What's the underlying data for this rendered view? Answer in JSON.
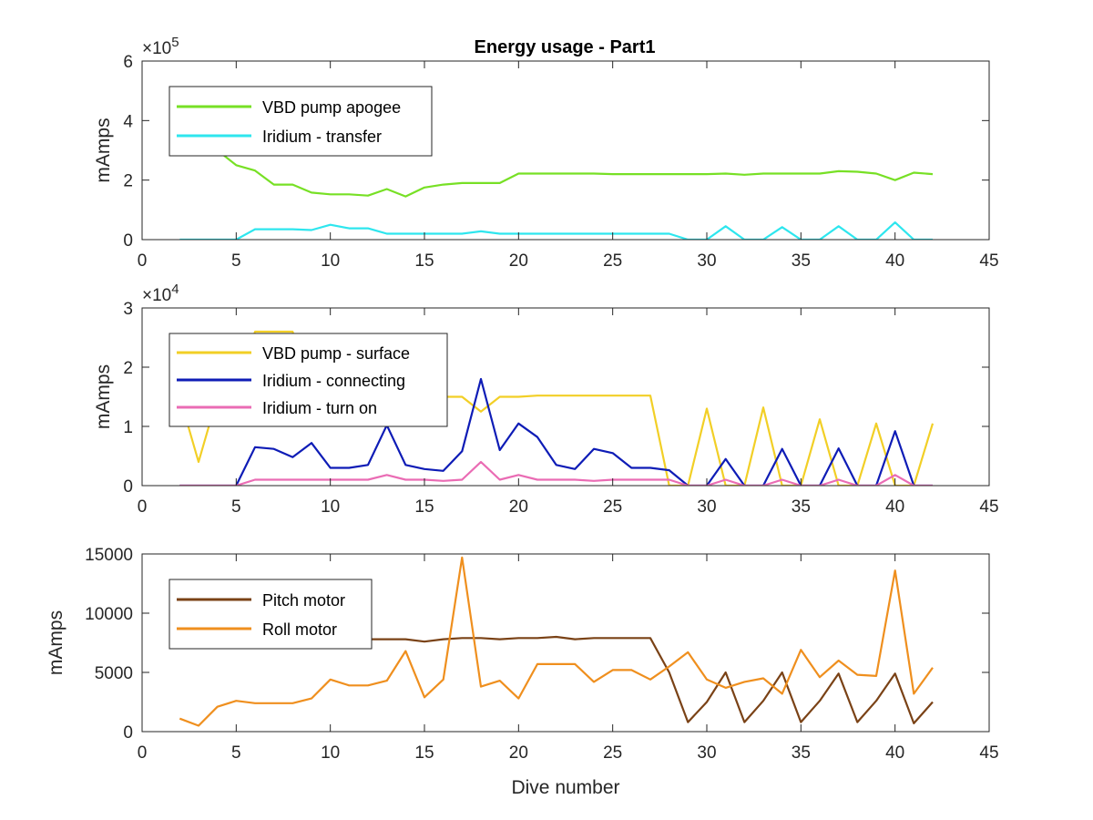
{
  "title": "Energy usage - Part1",
  "chart_data": [
    {
      "type": "line",
      "ylabel": "mAmps",
      "xlabel": "",
      "xlim": [
        0,
        45
      ],
      "ylim": [
        0,
        600000
      ],
      "xticks": [
        "0",
        "5",
        "10",
        "15",
        "20",
        "25",
        "30",
        "35",
        "40",
        "45"
      ],
      "yticks": [
        "0",
        "2",
        "4",
        "6"
      ],
      "ytick_values": [
        0,
        200000,
        400000,
        600000
      ],
      "y_exponent": {
        "base": "×10",
        "power": "5"
      },
      "legend_position": "top-left",
      "series": [
        {
          "name": "VBD pump apogee",
          "color": "#77e025",
          "x": [
            2,
            3,
            4,
            5,
            6,
            7,
            8,
            9,
            10,
            11,
            12,
            13,
            14,
            15,
            16,
            17,
            18,
            19,
            20,
            21,
            22,
            23,
            24,
            25,
            26,
            27,
            28,
            29,
            30,
            31,
            32,
            33,
            34,
            35,
            36,
            37,
            38,
            39,
            40,
            41,
            42
          ],
          "y": [
            480000,
            380000,
            300000,
            250000,
            232000,
            185000,
            185000,
            158000,
            152000,
            152000,
            148000,
            170000,
            145000,
            175000,
            185000,
            190000,
            190000,
            190000,
            222000,
            222000,
            222000,
            222000,
            222000,
            220000,
            220000,
            220000,
            220000,
            220000,
            220000,
            222000,
            218000,
            222000,
            222000,
            222000,
            222000,
            230000,
            228000,
            222000,
            200000,
            225000,
            220000
          ]
        },
        {
          "name": "Iridium - transfer",
          "color": "#2ee6ee",
          "x": [
            2,
            3,
            4,
            5,
            6,
            7,
            8,
            9,
            10,
            11,
            12,
            13,
            14,
            15,
            16,
            17,
            18,
            19,
            20,
            21,
            22,
            23,
            24,
            25,
            26,
            27,
            28,
            29,
            30,
            31,
            32,
            33,
            34,
            35,
            36,
            37,
            38,
            39,
            40,
            41,
            42
          ],
          "y": [
            0,
            0,
            0,
            0,
            35000,
            35000,
            35000,
            32000,
            50000,
            38000,
            38000,
            20000,
            20000,
            20000,
            20000,
            20000,
            28000,
            20000,
            20000,
            20000,
            20000,
            20000,
            20000,
            20000,
            20000,
            20000,
            20000,
            0,
            0,
            45000,
            0,
            0,
            42000,
            0,
            0,
            45000,
            0,
            0,
            58000,
            0,
            0
          ]
        }
      ]
    },
    {
      "type": "line",
      "ylabel": "mAmps",
      "xlabel": "",
      "xlim": [
        0,
        45
      ],
      "ylim": [
        0,
        30000
      ],
      "xticks": [
        "0",
        "5",
        "10",
        "15",
        "20",
        "25",
        "30",
        "35",
        "40",
        "45"
      ],
      "yticks": [
        "0",
        "1",
        "2",
        "3"
      ],
      "ytick_values": [
        0,
        10000,
        20000,
        30000
      ],
      "y_exponent": {
        "base": "×10",
        "power": "4"
      },
      "legend_position": "top-left",
      "series": [
        {
          "name": "VBD pump - surface",
          "color": "#f2cf26",
          "x": [
            2,
            3,
            4,
            5,
            6,
            7,
            8,
            9,
            10,
            11,
            12,
            13,
            14,
            15,
            16,
            17,
            18,
            19,
            20,
            21,
            22,
            23,
            24,
            25,
            26,
            27,
            28,
            29,
            30,
            31,
            32,
            33,
            34,
            35,
            36,
            37,
            38,
            39,
            40,
            41,
            42
          ],
          "y": [
            15000,
            4000,
            15000,
            15000,
            26000,
            26000,
            26000,
            15000,
            15000,
            15000,
            15000,
            15000,
            15000,
            15000,
            15000,
            15000,
            12500,
            15000,
            15000,
            15200,
            15200,
            15200,
            15200,
            15200,
            15200,
            15200,
            0,
            0,
            13000,
            0,
            0,
            13200,
            0,
            0,
            11200,
            0,
            0,
            10500,
            0,
            0,
            10500
          ]
        },
        {
          "name": "Iridium - connecting",
          "color": "#0e1cb6",
          "x": [
            2,
            3,
            4,
            5,
            6,
            7,
            8,
            9,
            10,
            11,
            12,
            13,
            14,
            15,
            16,
            17,
            18,
            19,
            20,
            21,
            22,
            23,
            24,
            25,
            26,
            27,
            28,
            29,
            30,
            31,
            32,
            33,
            34,
            35,
            36,
            37,
            38,
            39,
            40,
            41,
            42
          ],
          "y": [
            0,
            0,
            0,
            0,
            6500,
            6200,
            4800,
            7200,
            3000,
            3000,
            3500,
            10200,
            3500,
            2800,
            2500,
            5800,
            18000,
            6000,
            10500,
            8200,
            3500,
            2800,
            6200,
            5500,
            3000,
            3000,
            2600,
            0,
            0,
            4500,
            0,
            0,
            6200,
            0,
            0,
            6300,
            0,
            0,
            9200,
            0,
            0
          ]
        },
        {
          "name": "Iridium - turn on",
          "color": "#ea6cb4",
          "x": [
            2,
            3,
            4,
            5,
            6,
            7,
            8,
            9,
            10,
            11,
            12,
            13,
            14,
            15,
            16,
            17,
            18,
            19,
            20,
            21,
            22,
            23,
            24,
            25,
            26,
            27,
            28,
            29,
            30,
            31,
            32,
            33,
            34,
            35,
            36,
            37,
            38,
            39,
            40,
            41,
            42
          ],
          "y": [
            0,
            0,
            0,
            0,
            1000,
            1000,
            1000,
            1000,
            1000,
            1000,
            1000,
            1800,
            1000,
            1000,
            800,
            1000,
            4000,
            1000,
            1800,
            1000,
            1000,
            1000,
            800,
            1000,
            1000,
            1000,
            1000,
            0,
            0,
            1000,
            0,
            0,
            1000,
            0,
            0,
            1000,
            0,
            0,
            1800,
            0,
            0
          ]
        }
      ]
    },
    {
      "type": "line",
      "ylabel": "mAmps",
      "xlabel": "Dive number",
      "xlim": [
        0,
        45
      ],
      "ylim": [
        0,
        15000
      ],
      "xticks": [
        "0",
        "5",
        "10",
        "15",
        "20",
        "25",
        "30",
        "35",
        "40",
        "45"
      ],
      "yticks": [
        "0",
        "5000",
        "10000",
        "15000"
      ],
      "ytick_values": [
        0,
        5000,
        10000,
        15000
      ],
      "legend_position": "top-left",
      "series": [
        {
          "name": "Pitch motor",
          "color": "#7a4216",
          "x": [
            2,
            3,
            4,
            5,
            6,
            7,
            8,
            9,
            10,
            11,
            12,
            13,
            14,
            15,
            16,
            17,
            18,
            19,
            20,
            21,
            22,
            23,
            24,
            25,
            26,
            27,
            28,
            29,
            30,
            31,
            32,
            33,
            34,
            35,
            36,
            37,
            38,
            39,
            40,
            41,
            42
          ],
          "y": [
            7800,
            7800,
            7800,
            7800,
            7800,
            7800,
            7800,
            7800,
            7800,
            7800,
            7800,
            7800,
            7800,
            7600,
            7800,
            7900,
            7900,
            7800,
            7900,
            7900,
            8000,
            7800,
            7900,
            7900,
            7900,
            7900,
            5000,
            800,
            2500,
            5000,
            800,
            2600,
            5000,
            800,
            2600,
            4900,
            800,
            2600,
            4900,
            700,
            2500
          ]
        },
        {
          "name": "Roll motor",
          "color": "#ef8f1e",
          "x": [
            2,
            3,
            4,
            5,
            6,
            7,
            8,
            9,
            10,
            11,
            12,
            13,
            14,
            15,
            16,
            17,
            18,
            19,
            20,
            21,
            22,
            23,
            24,
            25,
            26,
            27,
            28,
            29,
            30,
            31,
            32,
            33,
            34,
            35,
            36,
            37,
            38,
            39,
            40,
            41,
            42
          ],
          "y": [
            1100,
            500,
            2100,
            2600,
            2400,
            2400,
            2400,
            2800,
            4400,
            3900,
            3900,
            4300,
            6800,
            2900,
            4400,
            14700,
            3800,
            4300,
            2800,
            5700,
            5700,
            5700,
            4200,
            5200,
            5200,
            4400,
            5500,
            6700,
            4400,
            3700,
            4200,
            4500,
            3200,
            6900,
            4600,
            6000,
            4800,
            4700,
            13600,
            3200,
            5400
          ]
        }
      ]
    }
  ]
}
